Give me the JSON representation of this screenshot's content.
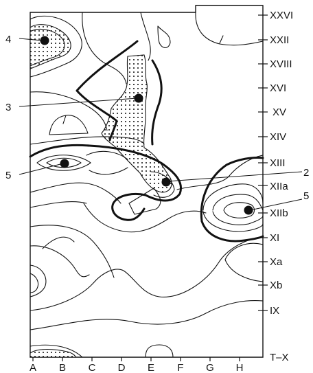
{
  "x_axis_labels": [
    "A",
    "B",
    "C",
    "D",
    "E",
    "F",
    "G",
    "H"
  ],
  "y_axis_labels": [
    "XXVI",
    "XXII",
    "XVIII",
    "XVI",
    "XV",
    "XIV",
    "XIII",
    "XIIa",
    "XIIb",
    "XI",
    "Xa",
    "Xb",
    "IX",
    "T–X"
  ],
  "callouts": [
    "4",
    "3",
    "5",
    "2",
    "5"
  ]
}
